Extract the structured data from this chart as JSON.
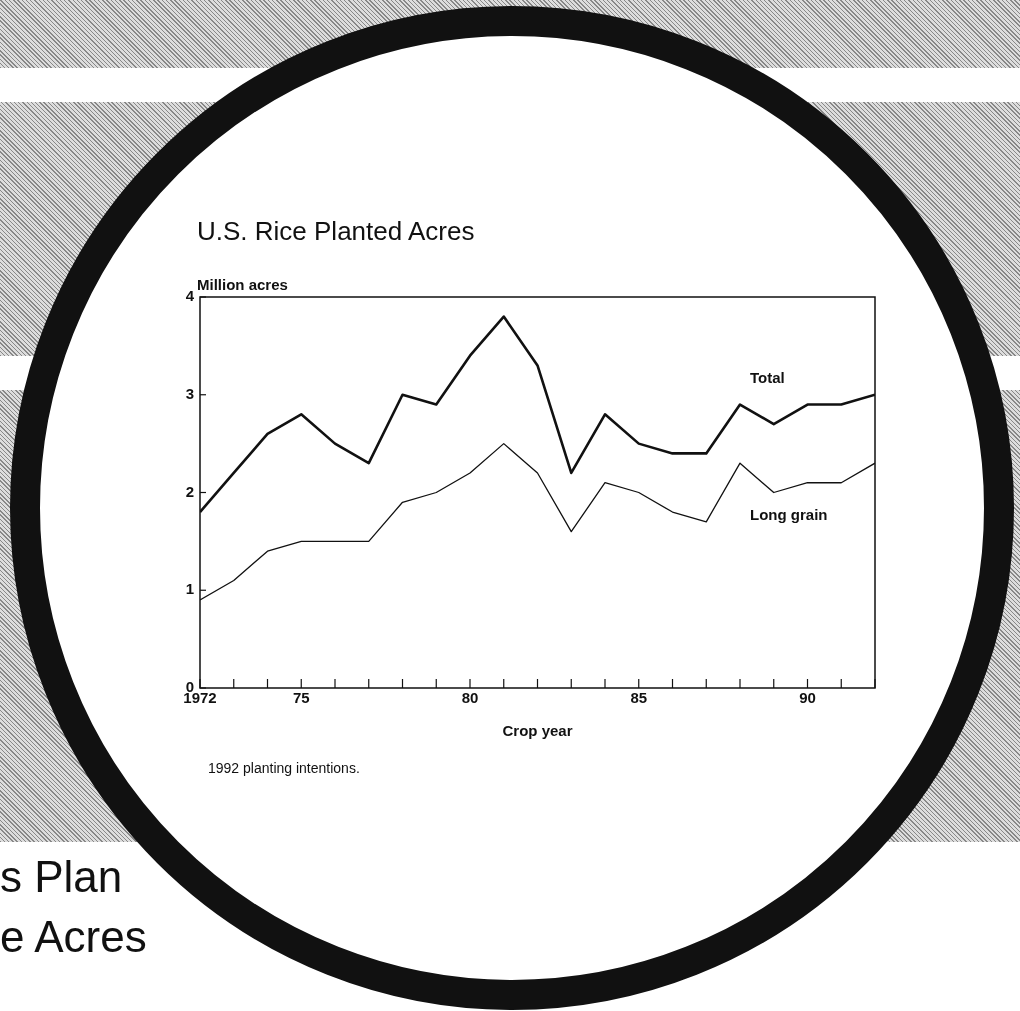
{
  "chart_data": {
    "type": "line",
    "title": "U.S. Rice Planted Acres",
    "ylabel": "Million acres",
    "xlabel": "Crop year",
    "x": [
      1972,
      1973,
      1974,
      1975,
      1976,
      1977,
      1978,
      1979,
      1980,
      1981,
      1982,
      1983,
      1984,
      1985,
      1986,
      1987,
      1988,
      1989,
      1990,
      1991,
      1992
    ],
    "xlim": [
      1972,
      1992
    ],
    "xticks": [
      {
        "value": 1972,
        "label": "1972"
      },
      {
        "value": 1973,
        "label": null
      },
      {
        "value": 1974,
        "label": null
      },
      {
        "value": 1975,
        "label": "75"
      },
      {
        "value": 1976,
        "label": null
      },
      {
        "value": 1977,
        "label": null
      },
      {
        "value": 1978,
        "label": null
      },
      {
        "value": 1979,
        "label": null
      },
      {
        "value": 1980,
        "label": "80"
      },
      {
        "value": 1981,
        "label": null
      },
      {
        "value": 1982,
        "label": null
      },
      {
        "value": 1983,
        "label": null
      },
      {
        "value": 1984,
        "label": null
      },
      {
        "value": 1985,
        "label": "85"
      },
      {
        "value": 1986,
        "label": null
      },
      {
        "value": 1987,
        "label": null
      },
      {
        "value": 1988,
        "label": null
      },
      {
        "value": 1989,
        "label": null
      },
      {
        "value": 1990,
        "label": "90"
      },
      {
        "value": 1991,
        "label": null
      },
      {
        "value": 1992,
        "label": null
      }
    ],
    "ylim": [
      0,
      4
    ],
    "yticks": [
      0,
      1,
      2,
      3,
      4
    ],
    "grid": false,
    "marker": "none",
    "line_style": "solid",
    "legend": false,
    "series": [
      {
        "name": "Total",
        "color": "#111111",
        "values": [
          1.8,
          2.2,
          2.6,
          2.8,
          2.5,
          2.3,
          3.0,
          2.9,
          3.4,
          3.8,
          3.3,
          2.2,
          2.8,
          2.5,
          2.4,
          2.4,
          2.9,
          2.7,
          2.9,
          2.9,
          3.0
        ]
      },
      {
        "name": "Long grain",
        "color": "#111111",
        "values": [
          0.9,
          1.1,
          1.4,
          1.5,
          1.5,
          1.5,
          1.9,
          2.0,
          2.2,
          2.5,
          2.2,
          1.6,
          2.1,
          2.0,
          1.8,
          1.7,
          2.3,
          2.0,
          2.1,
          2.1,
          2.3
        ]
      }
    ],
    "annotations": [
      "1992 planting intentions.",
      "s Plan",
      "e Acres"
    ]
  }
}
